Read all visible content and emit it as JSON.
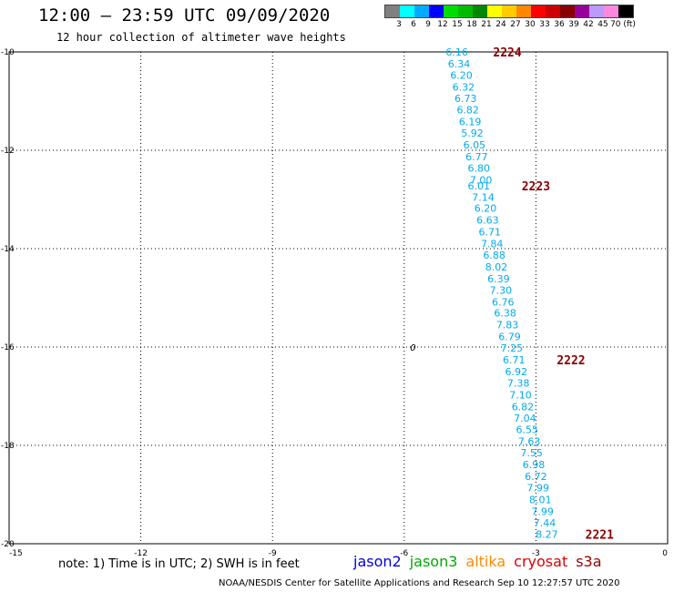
{
  "header": {
    "title": "12:00 – 23:59 UTC 09/09/2020",
    "subtitle": "12 hour collection of altimeter wave heights"
  },
  "legend": {
    "colors": [
      "#808080",
      "#00ffff",
      "#00aaff",
      "#0000ff",
      "#00dd00",
      "#00bb00",
      "#008800",
      "#ffff00",
      "#ffcc00",
      "#ff8800",
      "#ff0000",
      "#cc0000",
      "#880000",
      "#990099",
      "#bb99ff",
      "#ff88dd",
      "#000000"
    ],
    "labels": [
      "3",
      "6",
      "9",
      "12",
      "15",
      "18",
      "21",
      "24",
      "27",
      "30",
      "33",
      "36",
      "39",
      "42",
      "45",
      "70 (ft)"
    ]
  },
  "footer": {
    "note": "note: 1) Time is in UTC; 2) SWH is in feet",
    "missions": [
      {
        "name": "jason2",
        "color": "#0000dd"
      },
      {
        "name": "jason3",
        "color": "#00aa00"
      },
      {
        "name": "altika",
        "color": "#ff8800"
      },
      {
        "name": "cryosat",
        "color": "#dd0000"
      },
      {
        "name": "s3a",
        "color": "#990000"
      }
    ],
    "credit": "NOAA/NESDIS Center for Satellite Applications and Research   Sep 10 12:27:57 UTC 2020"
  },
  "chart_data": {
    "type": "scatter",
    "xlim": [
      -15,
      0
    ],
    "ylim": [
      -20,
      -10
    ],
    "x_ticks": [
      -15,
      -12,
      -9,
      -6,
      -3,
      0
    ],
    "y_ticks": [
      -10,
      -12,
      -14,
      -16,
      -18,
      -20
    ],
    "grid": true,
    "track_color": "#00aaee",
    "time_color": "#8b0000",
    "points": [
      {
        "x": -4.8,
        "y": -10.0,
        "v": "6.16"
      },
      {
        "x": -4.75,
        "y": -10.24,
        "v": "6.34"
      },
      {
        "x": -4.7,
        "y": -10.47,
        "v": "6.20"
      },
      {
        "x": -4.65,
        "y": -10.71,
        "v": "6.32"
      },
      {
        "x": -4.6,
        "y": -10.94,
        "v": "6.73"
      },
      {
        "x": -4.55,
        "y": -11.18,
        "v": "6.82"
      },
      {
        "x": -4.5,
        "y": -11.42,
        "v": "6.19"
      },
      {
        "x": -4.45,
        "y": -11.65,
        "v": "5.92"
      },
      {
        "x": -4.4,
        "y": -11.89,
        "v": "6.05"
      },
      {
        "x": -4.35,
        "y": -12.13,
        "v": "6.77"
      },
      {
        "x": -4.3,
        "y": -12.36,
        "v": "6.80"
      },
      {
        "x": -4.25,
        "y": -12.6,
        "v": "7.00"
      },
      {
        "x": -4.3,
        "y": -12.72,
        "v": "6.01"
      },
      {
        "x": -4.2,
        "y": -12.95,
        "v": "7.14"
      },
      {
        "x": -4.15,
        "y": -13.18,
        "v": "6.20"
      },
      {
        "x": -4.1,
        "y": -13.42,
        "v": "6.63"
      },
      {
        "x": -4.05,
        "y": -13.66,
        "v": "6.71"
      },
      {
        "x": -4.0,
        "y": -13.9,
        "v": "7.84"
      },
      {
        "x": -3.95,
        "y": -14.13,
        "v": "6.88"
      },
      {
        "x": -3.9,
        "y": -14.37,
        "v": "8.02"
      },
      {
        "x": -3.85,
        "y": -14.61,
        "v": "6.39"
      },
      {
        "x": -3.8,
        "y": -14.84,
        "v": "7.30"
      },
      {
        "x": -3.75,
        "y": -15.08,
        "v": "6.76"
      },
      {
        "x": -3.7,
        "y": -15.31,
        "v": "6.38"
      },
      {
        "x": -3.65,
        "y": -15.55,
        "v": "7.83"
      },
      {
        "x": -3.6,
        "y": -15.79,
        "v": "6.79"
      },
      {
        "x": -3.55,
        "y": -16.02,
        "v": "7.25"
      },
      {
        "x": -3.5,
        "y": -16.26,
        "v": "6.71"
      },
      {
        "x": -3.45,
        "y": -16.5,
        "v": "6.92"
      },
      {
        "x": -3.4,
        "y": -16.73,
        "v": "7.38"
      },
      {
        "x": -3.35,
        "y": -16.97,
        "v": "7.10"
      },
      {
        "x": -3.3,
        "y": -17.21,
        "v": "6.82"
      },
      {
        "x": -3.25,
        "y": -17.44,
        "v": "7.04"
      },
      {
        "x": -3.2,
        "y": -17.68,
        "v": "6.55"
      },
      {
        "x": -3.15,
        "y": -17.92,
        "v": "7.63"
      },
      {
        "x": -3.1,
        "y": -18.15,
        "v": "7.55"
      },
      {
        "x": -3.05,
        "y": -18.39,
        "v": "6.98"
      },
      {
        "x": -3.0,
        "y": -18.63,
        "v": "6.72"
      },
      {
        "x": -2.95,
        "y": -18.86,
        "v": "7.99"
      },
      {
        "x": -2.9,
        "y": -19.1,
        "v": "8.01"
      },
      {
        "x": -2.85,
        "y": -19.34,
        "v": "7.99"
      },
      {
        "x": -2.8,
        "y": -19.57,
        "v": "7.44"
      },
      {
        "x": -2.75,
        "y": -19.81,
        "v": "8.27"
      }
    ],
    "times": [
      {
        "x": -3.65,
        "y": -10.0,
        "t": "2224"
      },
      {
        "x": -3.0,
        "y": -12.72,
        "t": "2223"
      },
      {
        "x": -2.2,
        "y": -16.26,
        "t": "2222"
      },
      {
        "x": -1.55,
        "y": -19.81,
        "t": "2221"
      }
    ],
    "annotations": [
      {
        "x": -5.8,
        "y": -16.0,
        "t": "0"
      }
    ]
  }
}
